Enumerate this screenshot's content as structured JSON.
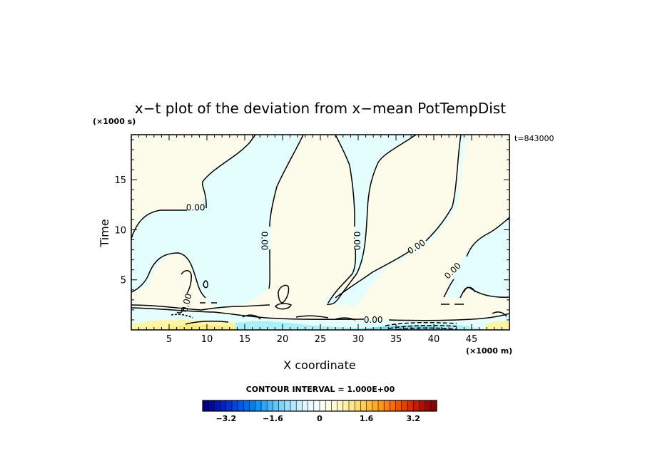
{
  "chart_data": {
    "type": "heatmap",
    "subtype": "filled contour (x-t plot)",
    "title": "x−t plot of the deviation from x−mean PotTempDist",
    "xlabel": "X coordinate",
    "ylabel": "Time",
    "x_unit": "(×1000 m)",
    "y_unit": "(×1000 s)",
    "time_stamp": "t=843000",
    "xlim": [
      0,
      50
    ],
    "ylim": [
      0,
      19.5
    ],
    "x_ticks": [
      5,
      10,
      15,
      20,
      25,
      30,
      35,
      40,
      45
    ],
    "y_ticks": [
      5,
      10,
      15
    ],
    "contour_labels": [
      {
        "text": "0.00",
        "x": 8.5,
        "y": 12.2,
        "rotate": 0
      },
      {
        "text": "0.00",
        "x": 17.6,
        "y": 8.9,
        "rotate": 90
      },
      {
        "text": "0.00",
        "x": 29.8,
        "y": 8.9,
        "rotate": 90
      },
      {
        "text": "0.00",
        "x": 37.7,
        "y": 8.3,
        "rotate": -33
      },
      {
        "text": "0.00",
        "x": 42.5,
        "y": 5.9,
        "rotate": -45
      },
      {
        "text": "0.00",
        "x": 7.3,
        "y": 2.7,
        "rotate": -75
      },
      {
        "text": "0.00",
        "x": 32.0,
        "y": 1.0,
        "rotate": 0
      }
    ],
    "regions": {
      "positive_background": "#fdfbe9",
      "negative": "#e4fefd",
      "weak_positive": "#fdf4a6",
      "strong_positive": "#f8ea7c",
      "weak_negative": "#a9f0f7",
      "strong_negative": "#6fd8ee"
    },
    "colorbar": {
      "caption": "CONTOUR INTERVAL = 1.000E+00",
      "min": -4.0,
      "max": 4.0,
      "step": 0.2,
      "tick_labels": [
        "−3.2",
        "−1.6",
        "0",
        "1.6",
        "3.2"
      ],
      "tick_values": [
        -3.2,
        -1.6,
        0,
        1.6,
        3.2
      ],
      "colors": [
        "#000080",
        "#000b9a",
        "#0016b3",
        "#0022c6",
        "#0033d6",
        "#0045e3",
        "#0058ec",
        "#006cf2",
        "#0080f6",
        "#1393f8",
        "#2ca5fa",
        "#47b6fb",
        "#62c6fc",
        "#7dd4fd",
        "#97e0fe",
        "#b0eafe",
        "#c6f2ff",
        "#d9f8ff",
        "#e8fcff",
        "#f3feff",
        "#fffff4",
        "#fffde6",
        "#fffad4",
        "#fff6bf",
        "#fff0a6",
        "#ffe78b",
        "#ffdc6e",
        "#ffce52",
        "#ffbe3a",
        "#ffab26",
        "#ff9618",
        "#ff800e",
        "#fb6a08",
        "#f35404",
        "#e83f02",
        "#da2b01",
        "#c91a00",
        "#b60e00",
        "#a10500",
        "#8c0000"
      ]
    }
  }
}
